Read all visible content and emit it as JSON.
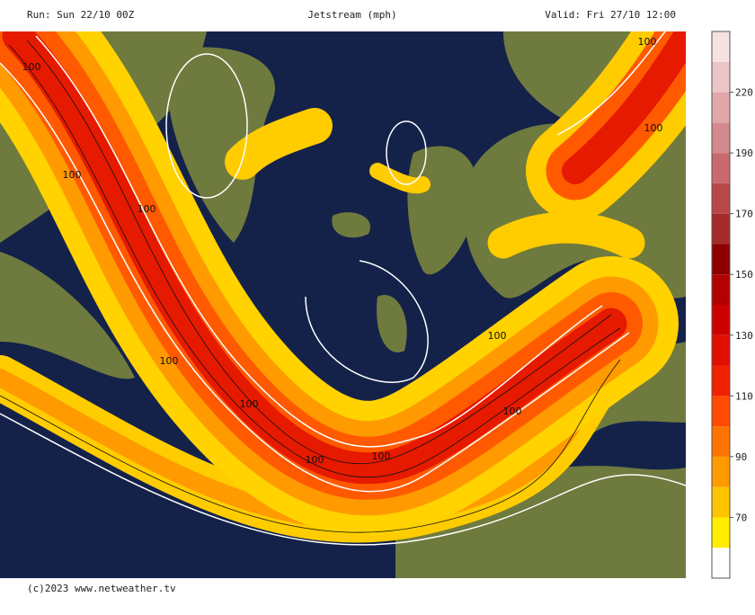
{
  "header": {
    "run": "Run: Sun 22/10 00Z",
    "title": "Jetstream (mph)",
    "valid": "Valid: Fri 27/10 12:00"
  },
  "footer": "(c)2023 www.netweather.tv",
  "legend": {
    "ticks": [
      70,
      90,
      110,
      130,
      150,
      170,
      190,
      220
    ],
    "colors": [
      "#ffffff",
      "#ffee00",
      "#ffc400",
      "#ff9a00",
      "#ff7300",
      "#ff4a00",
      "#f02000",
      "#e01000",
      "#cc0000",
      "#b30000",
      "#8c0000",
      "#a52a2a",
      "#b8474a",
      "#c86a6d",
      "#d48a8d",
      "#e0a8aa",
      "#ecc6c7",
      "#f6e2e3"
    ]
  },
  "map": {
    "contour_labels": [
      "100",
      "100",
      "100",
      "100",
      "100",
      "100",
      "100",
      "100",
      "100",
      "100",
      "100"
    ]
  }
}
